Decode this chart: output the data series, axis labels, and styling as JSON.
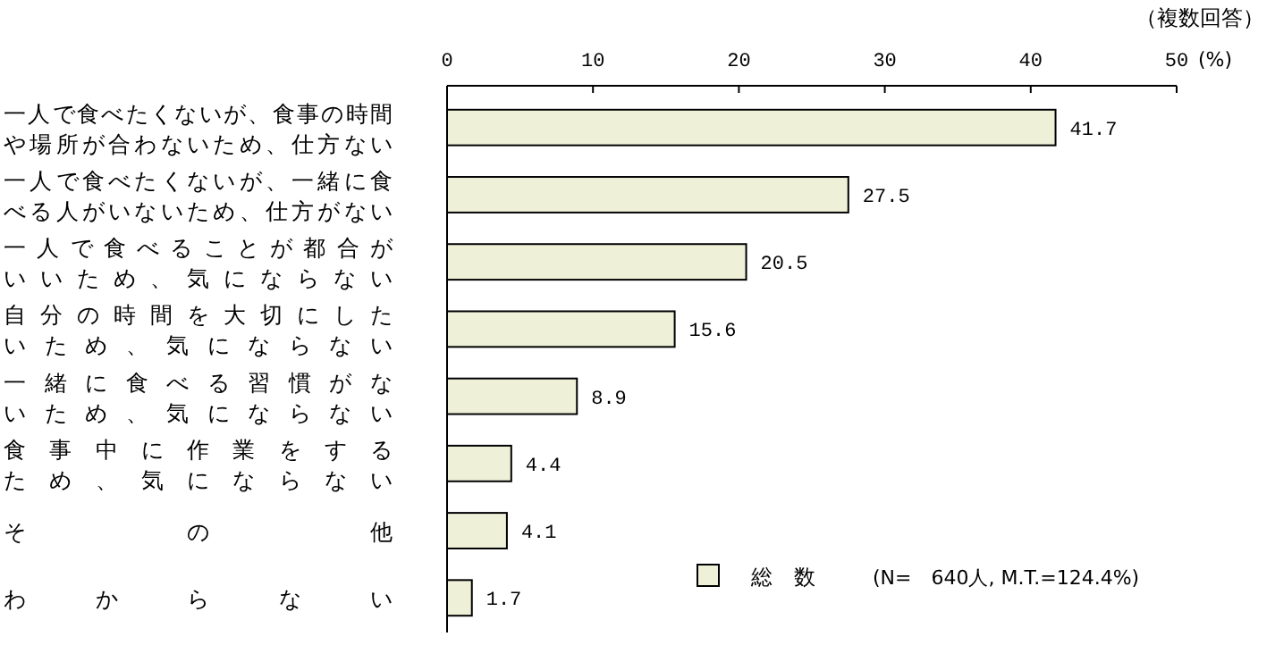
{
  "chart_data": {
    "type": "bar",
    "orientation": "horizontal",
    "xlabel": "(%)",
    "categories": [
      "一人で食べたくないが、食事の時間や場所が合わないため、仕方ない",
      "一人で食べたくないが、一緒に食べる人がいないため、仕方がない",
      "一人で食べることが都合がいいため、気にならない",
      "自分の時間を大切にしたいため、気にならない",
      "一緒に食べる習慣がないため、気にならない",
      "食事中に作業をするため、気にならない",
      "その他",
      "わからない"
    ],
    "series": [
      {
        "name": "総　数",
        "color": "#eef0d8",
        "values": [
          41.7,
          27.5,
          20.5,
          15.6,
          8.9,
          4.4,
          4.1,
          1.7
        ]
      }
    ],
    "xlim": [
      0,
      50
    ],
    "xticks": [
      0,
      10,
      20,
      30,
      40,
      50
    ],
    "data_labels": true,
    "legend": "bottom",
    "grid": false,
    "annotations": [
      "（複数回答）",
      "(N=　640人, M.T.=124.4%)"
    ]
  }
}
